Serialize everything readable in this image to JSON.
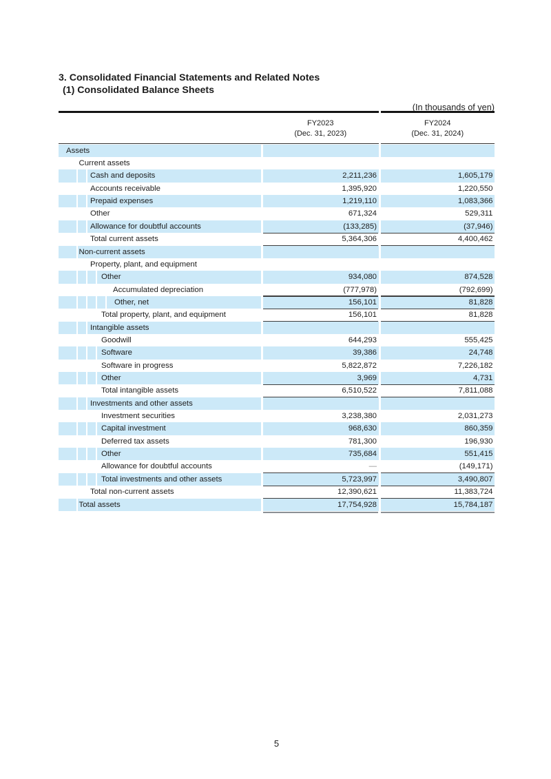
{
  "page": {
    "title": "3. Consolidated Financial Statements and Related Notes",
    "subtitle": "(1) Consolidated Balance Sheets",
    "unit_note": "(In thousands of yen)",
    "page_number": "5"
  },
  "table": {
    "columns": [
      {
        "label": "FY2023",
        "sublabel": "(Dec. 31, 2023)"
      },
      {
        "label": "FY2024",
        "sublabel": "(Dec. 31, 2024)"
      }
    ],
    "band_color": "#cce9f8",
    "rows": [
      {
        "label": "Assets",
        "indent": 0,
        "fy2023": "",
        "fy2024": ""
      },
      {
        "label": "Current assets",
        "indent": 1,
        "fy2023": "",
        "fy2024": ""
      },
      {
        "label": "Cash and deposits",
        "indent": 2,
        "fy2023": "2,211,236",
        "fy2024": "1,605,179"
      },
      {
        "label": "Accounts receivable",
        "indent": 2,
        "fy2023": "1,395,920",
        "fy2024": "1,220,550"
      },
      {
        "label": "Prepaid expenses",
        "indent": 2,
        "fy2023": "1,219,110",
        "fy2024": "1,083,366"
      },
      {
        "label": "Other",
        "indent": 2,
        "fy2023": "671,324",
        "fy2024": "529,311"
      },
      {
        "label": "Allowance for doubtful accounts",
        "indent": 2,
        "fy2023": "(133,285)",
        "fy2024": "(37,946)"
      },
      {
        "label": "Total current assets",
        "indent": 2,
        "fy2023": "5,364,306",
        "fy2024": "4,400,462",
        "rule_top": true,
        "rule_bottom": true
      },
      {
        "label": "Non-current assets",
        "indent": 1,
        "fy2023": "",
        "fy2024": ""
      },
      {
        "label": "Property, plant, and equipment",
        "indent": 2,
        "fy2023": "",
        "fy2024": ""
      },
      {
        "label": "Other",
        "indent": 3,
        "fy2023": "934,080",
        "fy2024": "874,528"
      },
      {
        "label": "Accumulated depreciation",
        "indent": 4,
        "fy2023": "(777,978)",
        "fy2024": "(792,699)"
      },
      {
        "label": "Other, net",
        "indent": 4,
        "fy2023": "156,101",
        "fy2024": "81,828",
        "rule_top": true
      },
      {
        "label": "Total property, plant, and equipment",
        "indent": 3,
        "fy2023": "156,101",
        "fy2024": "81,828",
        "rule_top": true,
        "rule_bottom": true
      },
      {
        "label": "Intangible assets",
        "indent": 2,
        "fy2023": "",
        "fy2024": ""
      },
      {
        "label": "Goodwill",
        "indent": 3,
        "fy2023": "644,293",
        "fy2024": "555,425"
      },
      {
        "label": "Software",
        "indent": 3,
        "fy2023": "39,386",
        "fy2024": "24,748"
      },
      {
        "label": "Software in progress",
        "indent": 3,
        "fy2023": "5,822,872",
        "fy2024": "7,226,182"
      },
      {
        "label": "Other",
        "indent": 3,
        "fy2023": "3,969",
        "fy2024": "4,731"
      },
      {
        "label": "Total intangible assets",
        "indent": 3,
        "fy2023": "6,510,522",
        "fy2024": "7,811,088",
        "rule_top": true,
        "rule_bottom": true
      },
      {
        "label": "Investments and other assets",
        "indent": 2,
        "fy2023": "",
        "fy2024": ""
      },
      {
        "label": "Investment securities",
        "indent": 3,
        "fy2023": "3,238,380",
        "fy2024": "2,031,273"
      },
      {
        "label": "Capital investment",
        "indent": 3,
        "fy2023": "968,630",
        "fy2024": "860,359"
      },
      {
        "label": "Deferred tax assets",
        "indent": 3,
        "fy2023": "781,300",
        "fy2024": "196,930"
      },
      {
        "label": "Other",
        "indent": 3,
        "fy2023": "735,684",
        "fy2024": "551,415"
      },
      {
        "label": "Allowance for doubtful accounts",
        "indent": 3,
        "fy2023": "—",
        "fy2024": "(149,171)"
      },
      {
        "label": "Total investments and other assets",
        "indent": 3,
        "fy2023": "5,723,997",
        "fy2024": "3,490,807",
        "rule_top": true
      },
      {
        "label": "Total non-current assets",
        "indent": 2,
        "fy2023": "12,390,621",
        "fy2024": "11,383,724",
        "rule_top": true
      },
      {
        "label": "Total assets",
        "indent": 1,
        "fy2023": "17,754,928",
        "fy2024": "15,784,187",
        "rule_top": true,
        "rule_bottom_thick": true
      }
    ]
  }
}
